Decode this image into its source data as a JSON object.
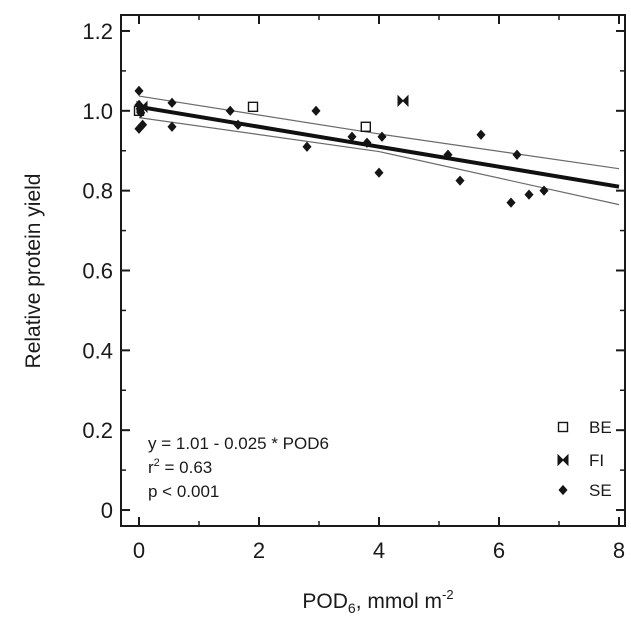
{
  "chart_data": {
    "type": "scatter",
    "xlabel": "POD",
    "xlabel_sub": "6",
    "xlabel_unit": ", mmol m",
    "xlabel_sup": "-2",
    "ylabel": "Relative protein yield",
    "xlim": [
      -0.3,
      8.1
    ],
    "ylim": [
      -0.04,
      1.24
    ],
    "xticks": [
      0,
      2,
      4,
      6,
      8
    ],
    "xtick_labels": [
      "0",
      "2",
      "4",
      "6",
      "8"
    ],
    "yticks": [
      0,
      0.2,
      0.4,
      0.6,
      0.8,
      1.0,
      1.2
    ],
    "ytick_labels": [
      "0",
      "0.2",
      "0.4",
      "0.6",
      "0.8",
      "1.0",
      "1.2"
    ],
    "grid": false,
    "legend_position": "bottom-right",
    "series": [
      {
        "name": "BE",
        "marker": "open-square",
        "points": [
          [
            0.0,
            1.0
          ],
          [
            1.9,
            1.01
          ],
          [
            3.78,
            0.96
          ]
        ]
      },
      {
        "name": "FI",
        "marker": "bowtie",
        "points": [
          [
            0.05,
            1.01
          ],
          [
            4.4,
            1.025
          ]
        ]
      },
      {
        "name": "SE",
        "marker": "filled-diamond",
        "points": [
          [
            0.0,
            1.05
          ],
          [
            0.0,
            1.015
          ],
          [
            0.02,
            1.005
          ],
          [
            0.03,
            0.995
          ],
          [
            0.0,
            0.955
          ],
          [
            0.06,
            0.965
          ],
          [
            0.55,
            1.02
          ],
          [
            0.55,
            0.96
          ],
          [
            1.52,
            1.0
          ],
          [
            1.65,
            0.965
          ],
          [
            2.95,
            1.0
          ],
          [
            2.8,
            0.91
          ],
          [
            3.55,
            0.935
          ],
          [
            3.8,
            0.92
          ],
          [
            4.0,
            0.845
          ],
          [
            4.05,
            0.935
          ],
          [
            5.15,
            0.89
          ],
          [
            5.35,
            0.825
          ],
          [
            5.7,
            0.94
          ],
          [
            6.2,
            0.77
          ],
          [
            6.3,
            0.89
          ],
          [
            6.5,
            0.79
          ],
          [
            6.75,
            0.8
          ]
        ]
      }
    ],
    "regression": {
      "intercept": 1.01,
      "slope": -0.025,
      "x_range": [
        0,
        8
      ]
    },
    "confidence_band": {
      "upper": [
        [
          0,
          1.037
        ],
        [
          4,
          0.942
        ],
        [
          8,
          0.855
        ]
      ],
      "lower": [
        [
          0,
          0.983
        ],
        [
          4,
          0.898
        ],
        [
          8,
          0.765
        ]
      ]
    },
    "annotations": {
      "equation": "y = 1.01 - 0.025 * POD6",
      "r2_prefix": "r",
      "r2_sup": "2",
      "r2_value": " = 0.63",
      "pvalue": "p < 0.001"
    }
  },
  "colors": {
    "axis": "#1a1a1a",
    "regression_line": "#111111",
    "confidence_band": "#6a6a6a",
    "markers": "#151515"
  }
}
